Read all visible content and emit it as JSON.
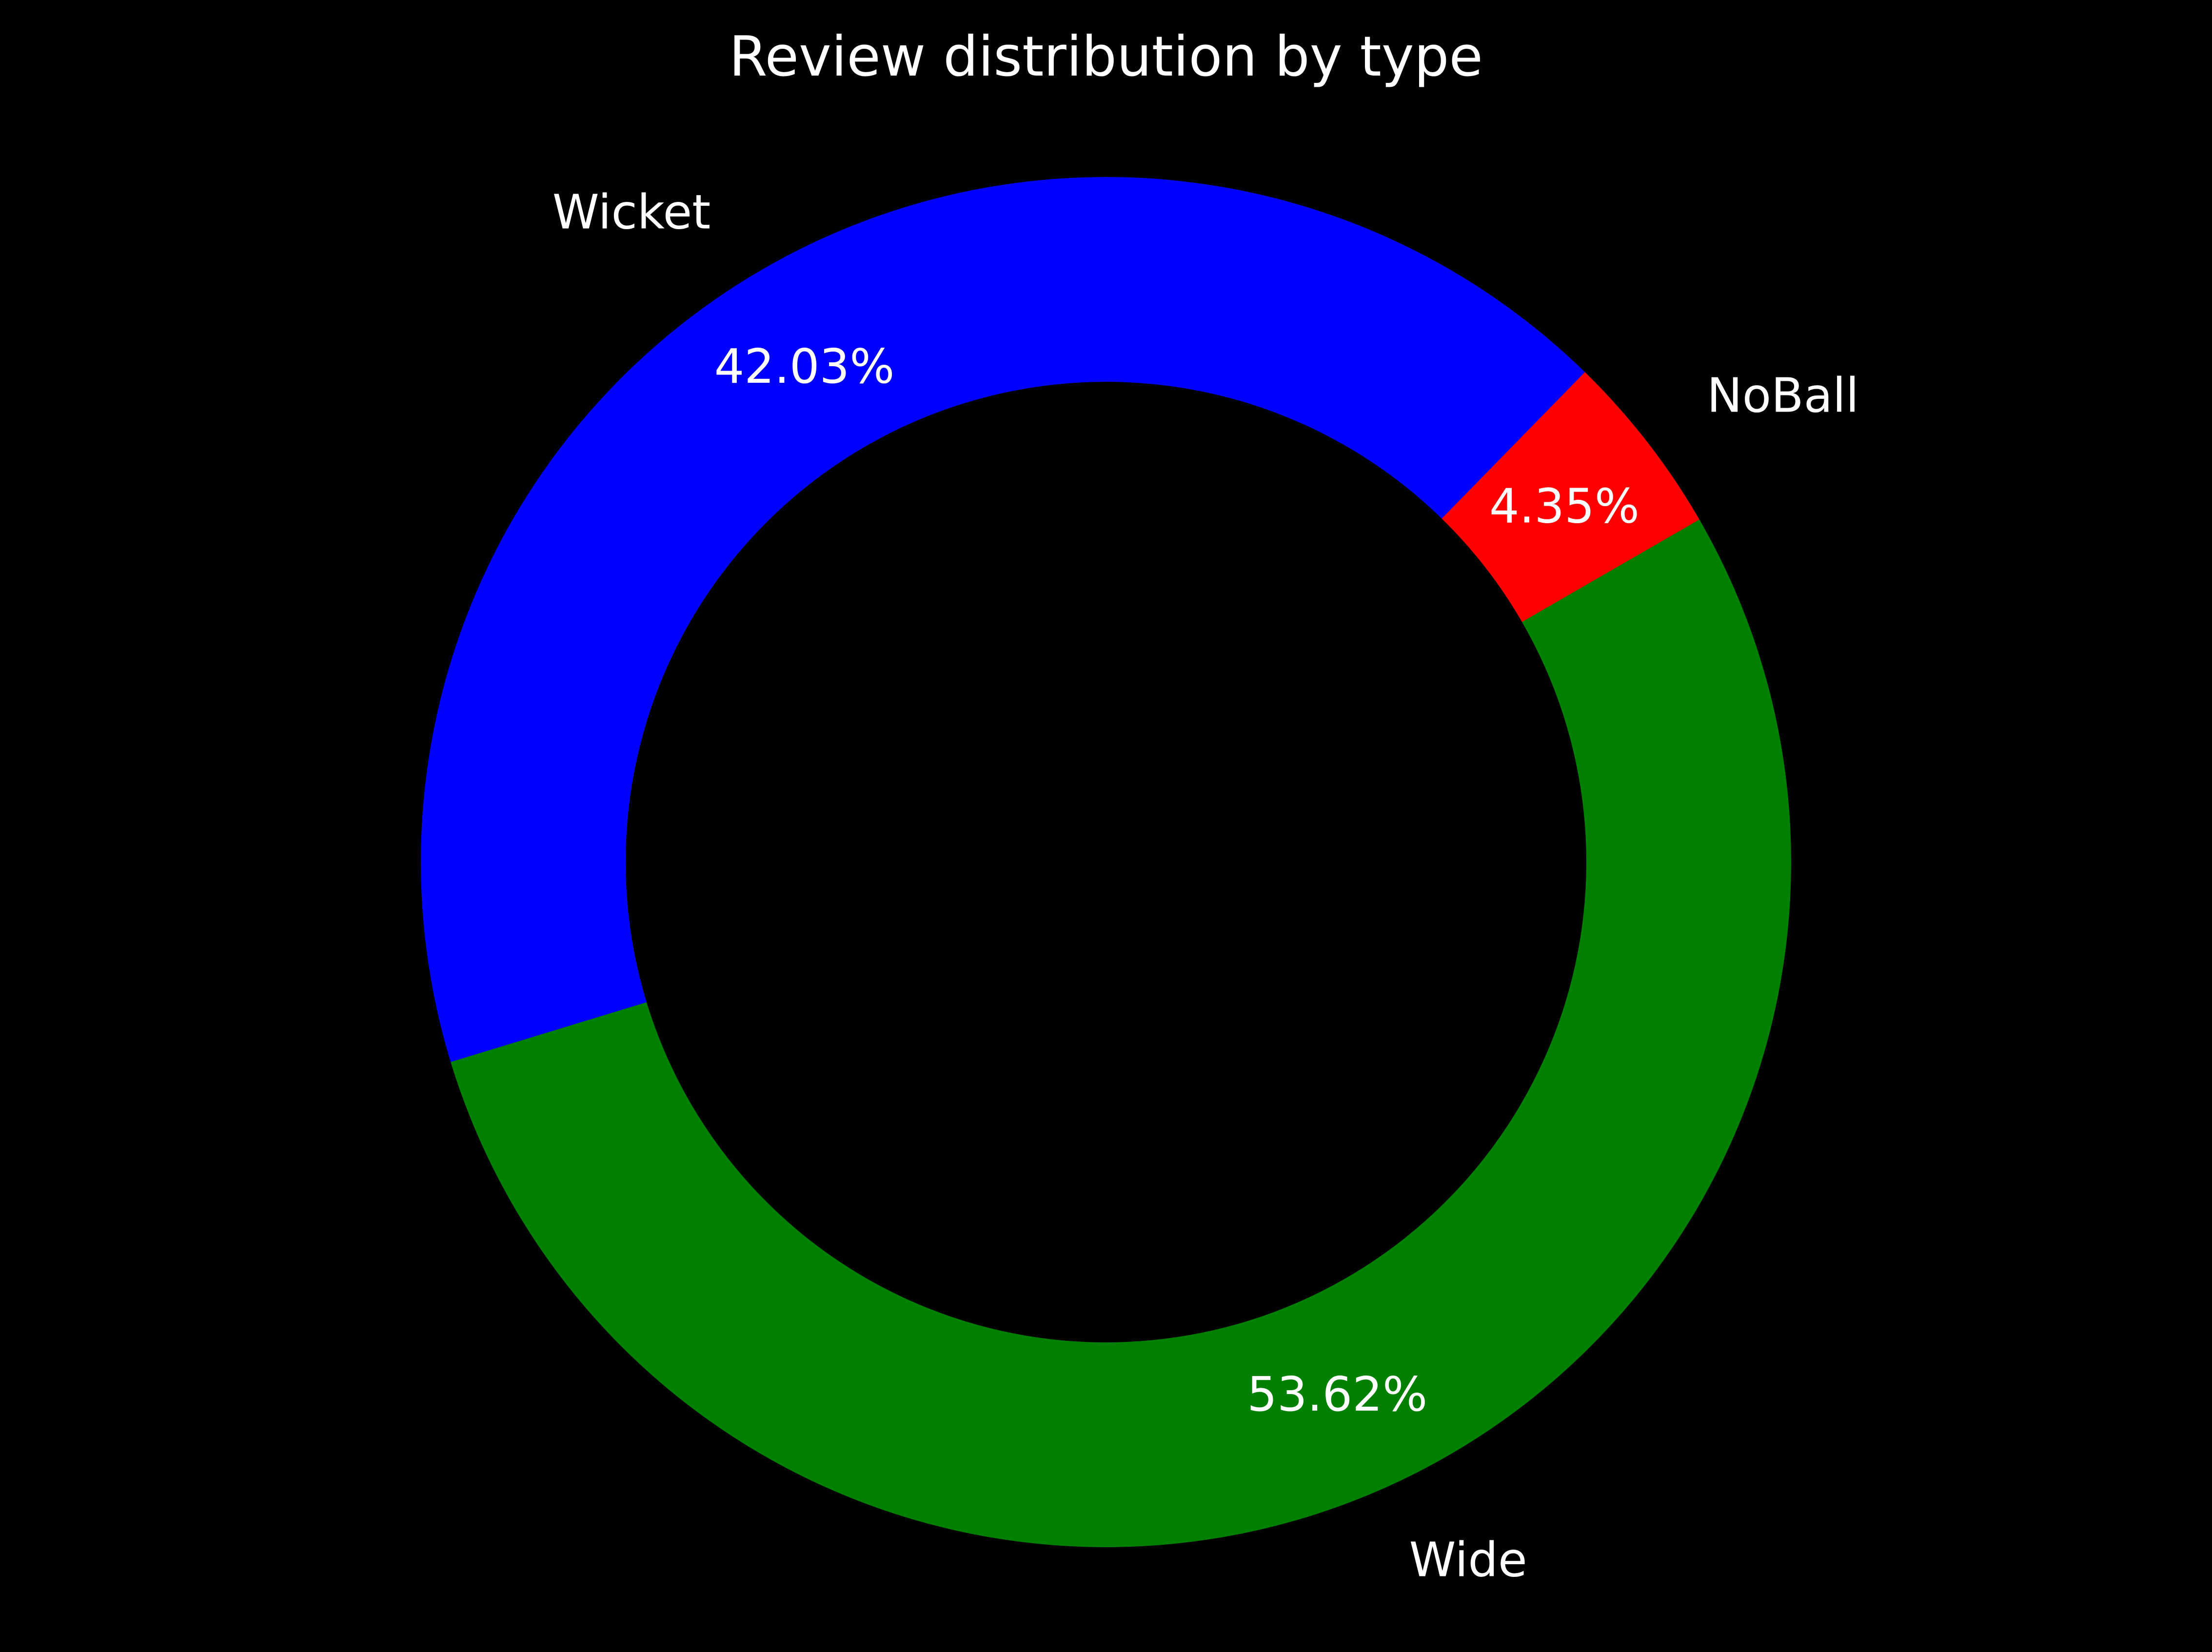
{
  "chart_data": {
    "type": "pie",
    "variant": "donut",
    "title": "Review distribution by type",
    "background": "#000000",
    "text_color": "#ffffff",
    "legend": "none",
    "slices": [
      {
        "label": "NoBall",
        "value": 4.35,
        "value_label": "4.35%",
        "color": "#ff0000"
      },
      {
        "label": "Wicket",
        "value": 42.03,
        "value_label": "42.03%",
        "color": "#0000ff"
      },
      {
        "label": "Wide",
        "value": 53.62,
        "value_label": "53.62%",
        "color": "#008000"
      }
    ]
  }
}
